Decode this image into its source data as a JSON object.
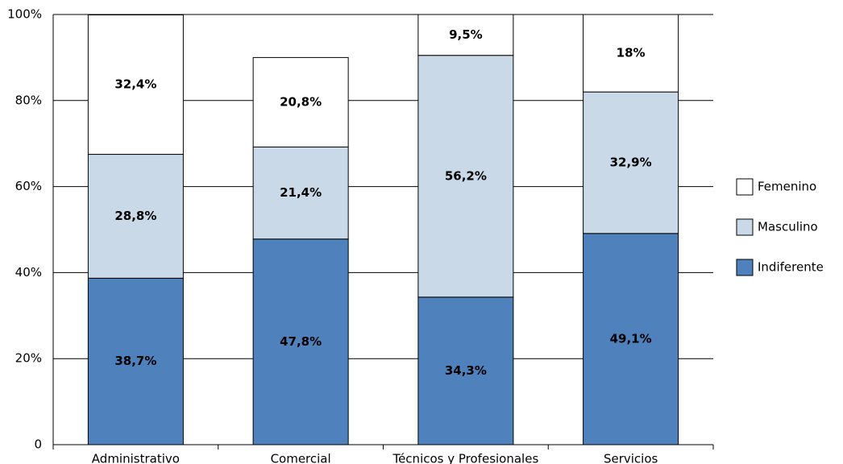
{
  "chart_data": {
    "type": "stacked-bar",
    "categories": [
      "Administrativo",
      "Comercial",
      "Técnicos y Profesionales",
      "Servicios"
    ],
    "series": [
      {
        "name": "Indiferente",
        "color": "#4f81bd",
        "values": [
          38.7,
          47.8,
          34.3,
          49.1
        ],
        "value_labels": [
          "38,7%",
          "47,8%",
          "34,3%",
          "49,1%"
        ]
      },
      {
        "name": "Masculino",
        "color": "#c9d9e7",
        "values": [
          28.8,
          21.4,
          56.2,
          32.9
        ],
        "value_labels": [
          "28,8%",
          "21,4%",
          "56,2%",
          "32,9%"
        ]
      },
      {
        "name": "Femenino",
        "color": "#ffffff",
        "values": [
          32.4,
          20.8,
          9.5,
          18
        ],
        "value_labels": [
          "32,4%",
          "20,8%",
          "9,5%",
          "18%"
        ]
      }
    ],
    "ylim": [
      0,
      100
    ],
    "yticks": [
      0,
      {
        "value": 20,
        "label": "20%"
      },
      {
        "value": 40,
        "label": "40%"
      },
      {
        "value": 60,
        "label": "60%"
      },
      {
        "value": 80,
        "label": "80%"
      },
      {
        "value": 100,
        "label": "100%"
      }
    ],
    "grid": true,
    "legend": "right"
  }
}
